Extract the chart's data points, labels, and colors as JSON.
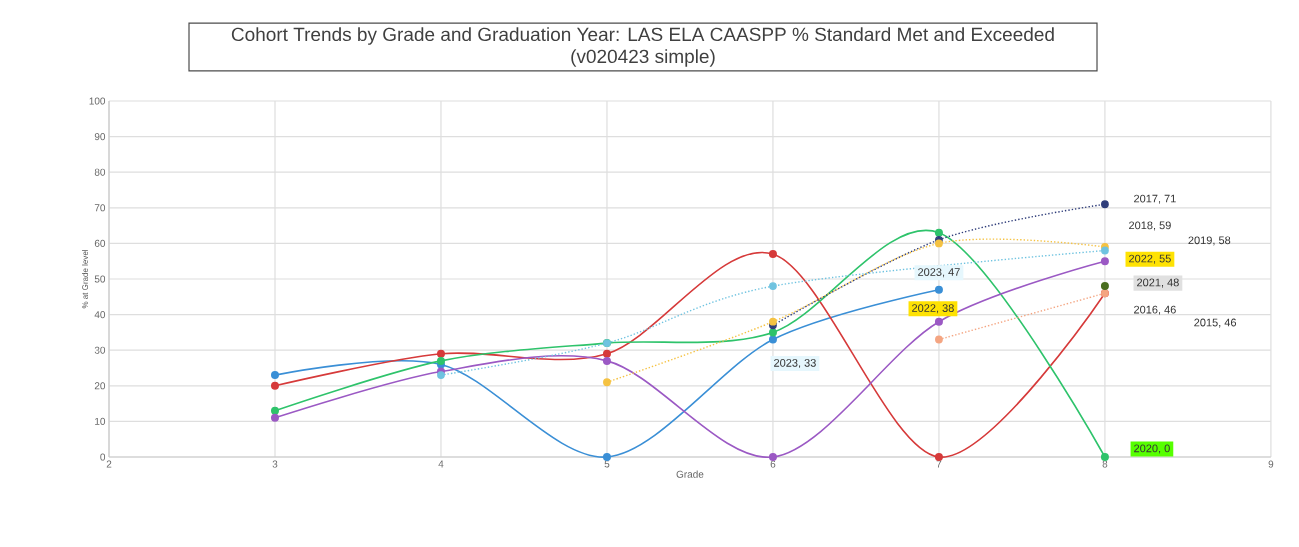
{
  "chart_data": {
    "type": "line",
    "title": "Cohort Trends by Grade and Graduation Year: LAS ELA CAASPP % Standard Met and Exceeded (v020423 simple)",
    "xlabel": "Grade",
    "ylabel": "% at Grade level",
    "xlim": [
      2,
      9
    ],
    "xticks": [
      2,
      3,
      4,
      5,
      6,
      7,
      8,
      9
    ],
    "ylim": [
      0,
      100
    ],
    "yticks": [
      0,
      10,
      20,
      30,
      40,
      50,
      60,
      70,
      80,
      90,
      100
    ],
    "grid": true,
    "marker": "circle",
    "series": [
      {
        "color": "#3a8fd6",
        "line_style": "solid",
        "x": [
          3,
          4,
          5,
          6,
          7
        ],
        "values": [
          23,
          26,
          0,
          33,
          47
        ]
      },
      {
        "color": "#d63a3a",
        "line_style": "solid",
        "x": [
          3,
          4,
          5,
          6,
          7,
          8
        ],
        "values": [
          20,
          29,
          29,
          57,
          0,
          46
        ]
      },
      {
        "color": "#2ec36b",
        "line_style": "solid",
        "x": [
          3,
          4,
          5,
          6,
          7,
          8
        ],
        "values": [
          13,
          27,
          32,
          35,
          63,
          0
        ]
      },
      {
        "color": "#9b59c4",
        "line_style": "solid",
        "x": [
          3,
          4,
          5,
          6,
          7,
          8
        ],
        "values": [
          11,
          24,
          27,
          0,
          38,
          55
        ]
      },
      {
        "color": "#2f3d7a",
        "line_style": "dotted",
        "x": [
          6,
          7,
          8
        ],
        "values": [
          37,
          61,
          71
        ]
      },
      {
        "color": "#f5c242",
        "line_style": "dotted",
        "x": [
          5,
          6,
          7,
          8
        ],
        "values": [
          21,
          38,
          60,
          59
        ]
      },
      {
        "color": "#6fc3e0",
        "line_style": "dotted",
        "x": [
          4,
          5,
          6,
          8
        ],
        "values": [
          23,
          32,
          48,
          58
        ]
      },
      {
        "color": "#f4a582",
        "line_style": "dotted",
        "x": [
          7,
          8
        ],
        "values": [
          33,
          46
        ]
      },
      {
        "type": "scatter",
        "color": "#4a6e1f",
        "x": [
          8
        ],
        "values": [
          48
        ]
      }
    ],
    "annotations": [
      {
        "text": "2017, 71",
        "x": 8,
        "y": 71
      },
      {
        "text": "2018, 59",
        "x": 8,
        "y": 59
      },
      "2019, 58",
      {
        "text": "2022, 55",
        "x": 8,
        "y": 55
      },
      {
        "text": "2021, 48",
        "x": 8,
        "y": 48
      },
      {
        "text": "2016, 46",
        "x": 8,
        "y": 46
      },
      "2015, 46",
      {
        "text": "2020, 0",
        "x": 8,
        "y": 0
      },
      {
        "text": "2023, 47",
        "x": 7,
        "y": 47
      },
      {
        "text": "2022, 38",
        "x": 7,
        "y": 38
      },
      {
        "text": "2023, 33",
        "x": 6,
        "y": 33
      }
    ]
  }
}
